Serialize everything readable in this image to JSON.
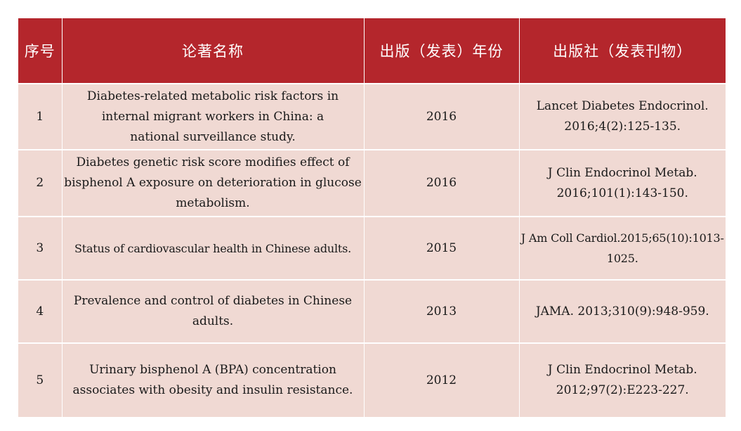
{
  "table": {
    "headers": {
      "index": "序号",
      "title": "论著名称",
      "year": "出版（发表）年份",
      "publisher": "出版社（发表刊物）"
    },
    "rows": [
      {
        "index": "1",
        "title": "Diabetes-related metabolic risk factors in internal migrant workers in China: a national surveillance study.",
        "year": "2016",
        "publisher": "Lancet Diabetes Endocrinol. 2016;4(2):125-135."
      },
      {
        "index": "2",
        "title": "Diabetes genetic risk score modifies effect of bisphenol A exposure on deterioration in glucose metabolism.",
        "year": "2016",
        "publisher": "J Clin Endocrinol Metab. 2016;101(1):143-150."
      },
      {
        "index": "3",
        "title": "Status of cardiovascular health in Chinese adults.",
        "year": "2015",
        "publisher": "J Am Coll Cardiol.2015;65(10):1013-1025."
      },
      {
        "index": "4",
        "title": "Prevalence and control of diabetes in Chinese adults.",
        "year": "2013",
        "publisher": "JAMA. 2013;310(9):948-959."
      },
      {
        "index": "5",
        "title": "Urinary bisphenol A (BPA) concentration associates with obesity and insulin resistance.",
        "year": "2012",
        "publisher": "J Clin Endocrinol Metab. 2012;97(2):E223-227."
      }
    ]
  },
  "colors": {
    "header_bg": "#b4262c",
    "row_bg": "#f0d9d3"
  }
}
